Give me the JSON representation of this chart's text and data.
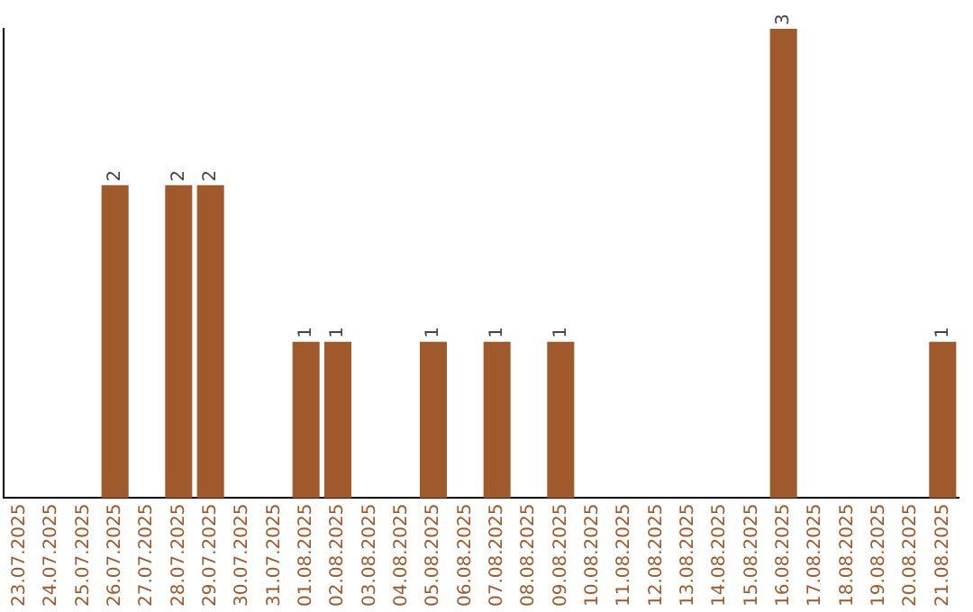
{
  "chart_data": {
    "type": "bar",
    "categories": [
      "23.07.2025",
      "24.07.2025",
      "25.07.2025",
      "26.07.2025",
      "27.07.2025",
      "28.07.2025",
      "29.07.2025",
      "30.07.2025",
      "31.07.2025",
      "01.08.2025",
      "02.08.2025",
      "03.08.2025",
      "04.08.2025",
      "05.08.2025",
      "06.08.2025",
      "07.08.2025",
      "08.08.2025",
      "09.08.2025",
      "10.08.2025",
      "11.08.2025",
      "12.08.2025",
      "13.08.2025",
      "14.08.2025",
      "15.08.2025",
      "16.08.2025",
      "17.08.2025",
      "18.08.2025",
      "19.08.2025",
      "20.08.2025",
      "21.08.2025"
    ],
    "values": [
      0,
      0,
      0,
      2,
      0,
      2,
      2,
      0,
      0,
      1,
      1,
      0,
      0,
      1,
      0,
      1,
      0,
      1,
      0,
      0,
      0,
      0,
      0,
      0,
      3,
      0,
      0,
      0,
      0,
      1
    ],
    "value_labels": [
      null,
      null,
      null,
      "2",
      null,
      "2",
      "2",
      null,
      null,
      "1",
      "1",
      null,
      null,
      "1",
      null,
      "1",
      null,
      "1",
      null,
      null,
      null,
      null,
      null,
      null,
      "3",
      null,
      null,
      null,
      null,
      "1"
    ],
    "color": "#a0592b",
    "ylim": [
      0,
      3
    ],
    "tick_labels": "x",
    "grid": false,
    "legend": false
  }
}
